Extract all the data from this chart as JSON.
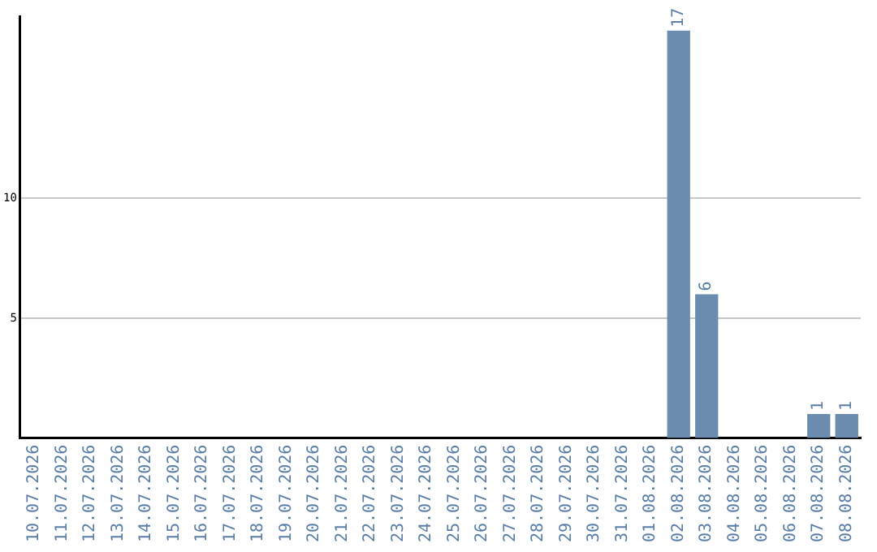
{
  "chart_data": {
    "type": "bar",
    "categories": [
      "10.07.2026",
      "11.07.2026",
      "12.07.2026",
      "13.07.2026",
      "14.07.2026",
      "15.07.2026",
      "16.07.2026",
      "17.07.2026",
      "18.07.2026",
      "19.07.2026",
      "20.07.2026",
      "21.07.2026",
      "22.07.2026",
      "23.07.2026",
      "24.07.2026",
      "25.07.2026",
      "26.07.2026",
      "27.07.2026",
      "28.07.2026",
      "29.07.2026",
      "30.07.2026",
      "31.07.2026",
      "01.08.2026",
      "02.08.2026",
      "03.08.2026",
      "04.08.2026",
      "05.08.2026",
      "06.08.2026",
      "07.08.2026",
      "08.08.2026"
    ],
    "values": [
      0,
      0,
      0,
      0,
      0,
      0,
      0,
      0,
      0,
      0,
      0,
      0,
      0,
      0,
      0,
      0,
      0,
      0,
      0,
      0,
      0,
      0,
      0,
      17,
      6,
      0,
      0,
      0,
      1,
      1
    ],
    "value_labels": [
      null,
      null,
      null,
      null,
      null,
      null,
      null,
      null,
      null,
      null,
      null,
      null,
      null,
      null,
      null,
      null,
      null,
      null,
      null,
      null,
      null,
      null,
      null,
      "17",
      "6",
      null,
      null,
      null,
      "1",
      "1"
    ],
    "color": "#6b8cae",
    "ylim": [
      0,
      17.6
    ],
    "yticks": [
      5,
      10
    ],
    "grid": "y",
    "legend": false
  }
}
